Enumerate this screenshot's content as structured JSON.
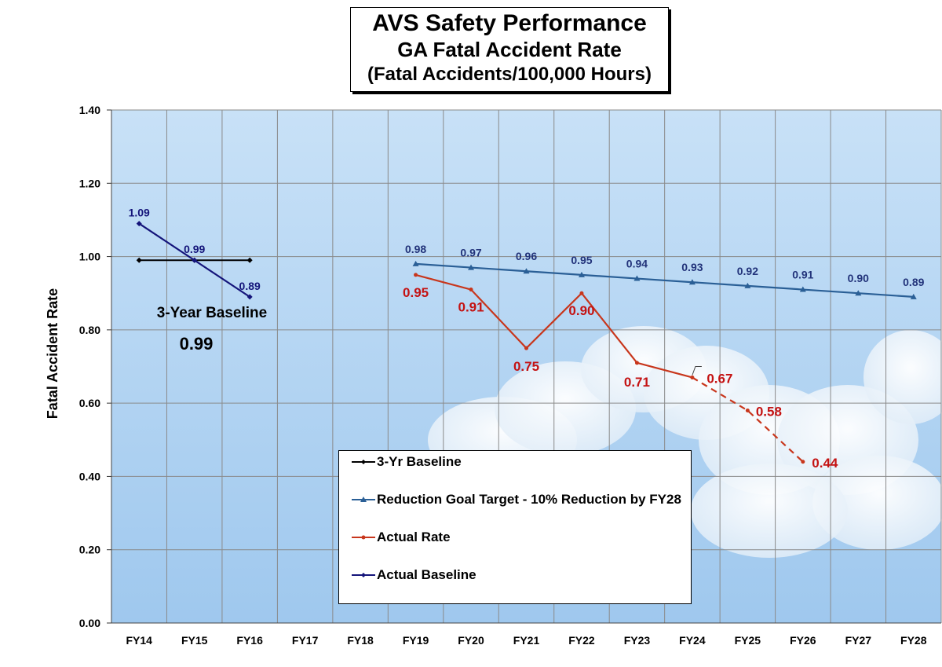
{
  "title": {
    "line1": "AVS Safety Performance",
    "line2": "GA Fatal Accident Rate",
    "line3": "(Fatal Accidents/100,000 Hours)"
  },
  "annotations": {
    "baseline_label": "3-Year Baseline",
    "baseline_value": "0.99"
  },
  "legend": {
    "items": [
      {
        "label": "3-Yr Baseline",
        "color": "#000000",
        "marker": "diamond"
      },
      {
        "label": "Reduction Goal Target - 10% Reduction by FY28",
        "color": "#2a5f96",
        "marker": "triangle"
      },
      {
        "label": "Actual Rate",
        "color": "#c8361c",
        "marker": "dot"
      },
      {
        "label": "Actual Baseline",
        "color": "#14147a",
        "marker": "diamond"
      }
    ]
  },
  "colors": {
    "plot_sky_top": "#c6e0f7",
    "plot_sky_bottom": "#a7cdf0",
    "baseline": "#000000",
    "goal": "#2a5f96",
    "goal_label": "#22337a",
    "actual": "#c8361c",
    "actual_label": "#c41212",
    "actual_baseline": "#14147a"
  },
  "chart_data": {
    "type": "line",
    "title": "AVS Safety Performance GA Fatal Accident Rate (Fatal Accidents/100,000 Hours)",
    "xlabel": "",
    "ylabel": "Fatal Accident Rate",
    "categories": [
      "FY14",
      "FY15",
      "FY16",
      "FY17",
      "FY18",
      "FY19",
      "FY20",
      "FY21",
      "FY22",
      "FY23",
      "FY24",
      "FY25",
      "FY26",
      "FY27",
      "FY28"
    ],
    "ylim": [
      0,
      1.4
    ],
    "yticks": [
      "0.00",
      "0.20",
      "0.40",
      "0.60",
      "0.80",
      "1.00",
      "1.20",
      "1.40"
    ],
    "grid": true,
    "legend_position": "bottom-center",
    "series": [
      {
        "name": "3-Yr Baseline",
        "values": [
          0.99,
          0.99,
          0.99,
          null,
          null,
          null,
          null,
          null,
          null,
          null,
          null,
          null,
          null,
          null,
          null
        ]
      },
      {
        "name": "Reduction Goal Target - 10% Reduction by FY28",
        "values": [
          null,
          null,
          null,
          null,
          null,
          0.98,
          0.97,
          0.96,
          0.95,
          0.94,
          0.93,
          0.92,
          0.91,
          0.9,
          0.89
        ]
      },
      {
        "name": "Actual Rate",
        "values": [
          null,
          null,
          null,
          null,
          null,
          0.95,
          0.91,
          0.75,
          0.9,
          0.71,
          0.67,
          0.58,
          0.44,
          null,
          null
        ],
        "projected_from": "FY24"
      },
      {
        "name": "Actual Baseline",
        "values": [
          1.09,
          0.99,
          0.89,
          null,
          null,
          null,
          null,
          null,
          null,
          null,
          null,
          null,
          null,
          null,
          null
        ]
      }
    ],
    "data_labels": {
      "goal": [
        "0.98",
        "0.97",
        "0.96",
        "0.95",
        "0.94",
        "0.93",
        "0.92",
        "0.91",
        "0.90",
        "0.89"
      ],
      "actual": [
        "0.95",
        "0.91",
        "0.75",
        "0.90",
        "0.71",
        "0.67",
        "0.58",
        "0.44"
      ],
      "actual_baseline": [
        "1.09",
        "0.99",
        "0.89"
      ]
    }
  }
}
